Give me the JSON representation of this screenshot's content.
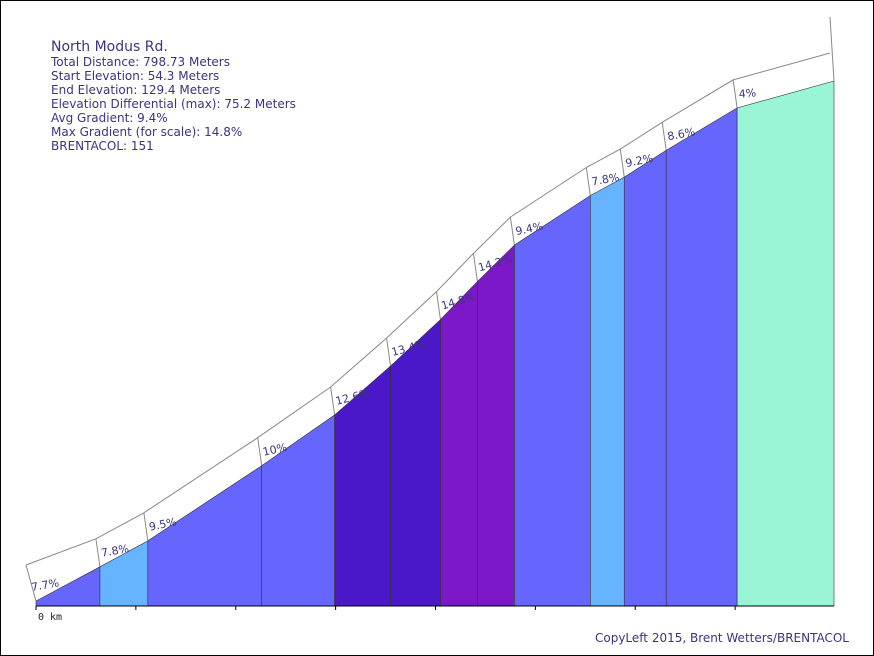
{
  "info": {
    "title": "North Modus Rd.",
    "total_distance": "Total Distance: 798.73 Meters",
    "start_elevation": "Start Elevation: 54.3 Meters",
    "end_elevation": "End Elevation: 129.4 Meters",
    "elevation_differential": "Elevation Differential (max): 75.2 Meters",
    "avg_gradient": "Avg Gradient: 9.4%",
    "max_gradient": "Max Gradient (for scale): 14.8%",
    "brentacol": "BRENTACOL: 151"
  },
  "copyright": "CopyLeft 2015, Brent Wetters/BRENTACOL",
  "chart_data": {
    "type": "area",
    "x_unit": "km",
    "x_tick_labels": [
      "0 km"
    ],
    "segments": [
      {
        "start_km": 0.0,
        "end_km": 0.064,
        "gradient_label": "7.7%",
        "color": "#6666ff"
      },
      {
        "start_km": 0.064,
        "end_km": 0.112,
        "gradient_label": "7.8%",
        "color": "#66b3ff"
      },
      {
        "start_km": 0.112,
        "end_km": 0.226,
        "gradient_label": "9.5%",
        "color": "#6666ff"
      },
      {
        "start_km": 0.226,
        "end_km": 0.299,
        "gradient_label": "10%",
        "color": "#6666ff"
      },
      {
        "start_km": 0.299,
        "end_km": 0.355,
        "gradient_label": "12.6%",
        "color": "#4a18c8"
      },
      {
        "start_km": 0.355,
        "end_km": 0.405,
        "gradient_label": "13.4%",
        "color": "#4a18c8"
      },
      {
        "start_km": 0.405,
        "end_km": 0.442,
        "gradient_label": "14.8%",
        "color": "#7d18c8"
      },
      {
        "start_km": 0.442,
        "end_km": 0.479,
        "gradient_label": "14.2%",
        "color": "#7d18c8"
      },
      {
        "start_km": 0.479,
        "end_km": 0.555,
        "gradient_label": "9.4%",
        "color": "#6666ff"
      },
      {
        "start_km": 0.555,
        "end_km": 0.589,
        "gradient_label": "7.8%",
        "color": "#66b3ff"
      },
      {
        "start_km": 0.589,
        "end_km": 0.631,
        "gradient_label": "9.2%",
        "color": "#6666ff"
      },
      {
        "start_km": 0.631,
        "end_km": 0.702,
        "gradient_label": "8.6%",
        "color": "#6666ff"
      },
      {
        "start_km": 0.702,
        "end_km": 0.799,
        "gradient_label": "4%",
        "color": "#99f5d6"
      }
    ]
  }
}
